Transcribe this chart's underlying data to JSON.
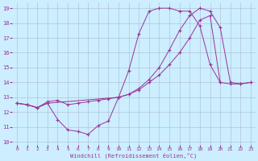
{
  "xlabel": "Windchill (Refroidissement éolien,°C)",
  "background_color": "#cceeff",
  "grid_color": "#aabbcc",
  "line_color": "#993399",
  "xlim": [
    -0.5,
    23.5
  ],
  "ylim": [
    9.8,
    19.4
  ],
  "xticks": [
    0,
    1,
    2,
    3,
    4,
    5,
    6,
    7,
    8,
    9,
    10,
    11,
    12,
    13,
    14,
    15,
    16,
    17,
    18,
    19,
    20,
    21,
    22,
    23
  ],
  "yticks": [
    10,
    11,
    12,
    13,
    14,
    15,
    16,
    17,
    18,
    19
  ],
  "line1_x": [
    0,
    1,
    2,
    3,
    4,
    5,
    6,
    7,
    8,
    9,
    10,
    11,
    12,
    13,
    14,
    15,
    16,
    17,
    18,
    19,
    20
  ],
  "line1_y": [
    12.6,
    12.5,
    12.3,
    12.6,
    11.5,
    10.8,
    10.7,
    10.5,
    11.1,
    11.4,
    13.0,
    14.8,
    17.3,
    18.8,
    19.0,
    19.0,
    18.8,
    18.8,
    17.8,
    15.2,
    14.0
  ],
  "line2_x": [
    0,
    1,
    2,
    3,
    4,
    5,
    6,
    7,
    8,
    9,
    10,
    11,
    12,
    13,
    14,
    15,
    16,
    17,
    18,
    19,
    20,
    21,
    22,
    23
  ],
  "line2_y": [
    12.6,
    12.5,
    12.3,
    12.7,
    12.8,
    12.5,
    12.6,
    12.7,
    12.8,
    12.9,
    13.0,
    13.2,
    13.5,
    14.0,
    14.5,
    15.2,
    16.0,
    17.0,
    18.2,
    18.5,
    14.0,
    13.9,
    13.9,
    14.0
  ],
  "line3_x": [
    0,
    1,
    2,
    3,
    10,
    11,
    12,
    13,
    14,
    15,
    16,
    17,
    18,
    19,
    20,
    21,
    22,
    23
  ],
  "line3_y": [
    12.6,
    12.5,
    12.3,
    12.6,
    13.0,
    13.2,
    13.6,
    14.2,
    15.0,
    16.2,
    17.5,
    18.5,
    19.0,
    18.8,
    17.7,
    14.0,
    13.9,
    14.0
  ]
}
